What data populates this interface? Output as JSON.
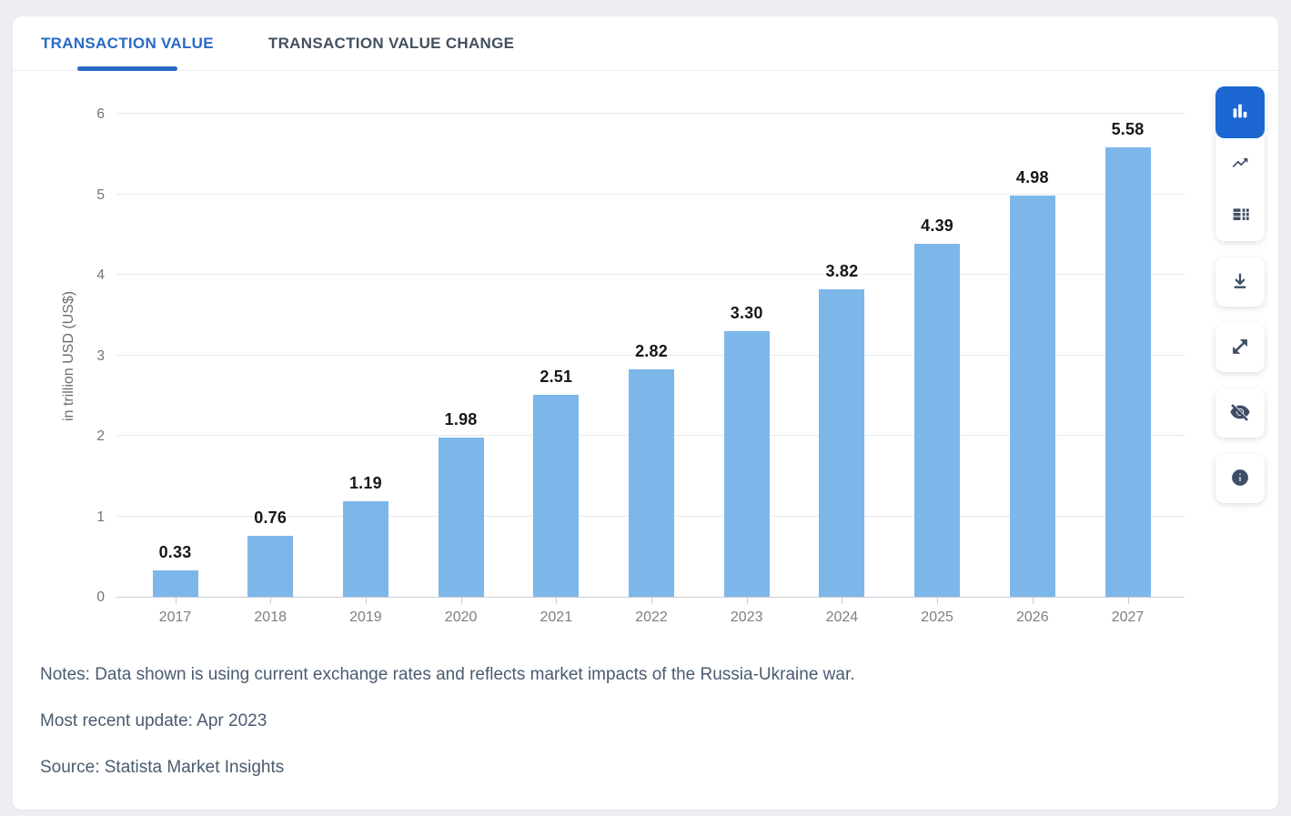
{
  "theme": {
    "accent_blue": "#2a6ac6",
    "active_button_blue": "#1d67d2",
    "icon_slate": "#3e4e66",
    "page_background": "#edeff4"
  },
  "tabs": [
    {
      "label": "TRANSACTION VALUE",
      "active": true
    },
    {
      "label": "TRANSACTION VALUE CHANGE",
      "active": false
    }
  ],
  "chart_data": {
    "type": "bar",
    "categories": [
      "2017",
      "2018",
      "2019",
      "2020",
      "2021",
      "2022",
      "2023",
      "2024",
      "2025",
      "2026",
      "2027"
    ],
    "values": [
      0.33,
      0.76,
      1.19,
      1.98,
      2.51,
      2.82,
      3.3,
      3.82,
      4.39,
      4.98,
      5.58
    ],
    "value_labels": [
      "0.33",
      "0.76",
      "1.19",
      "1.98",
      "2.51",
      "2.82",
      "3.30",
      "3.82",
      "4.39",
      "4.98",
      "5.58"
    ],
    "ylabel": "in trillion USD (US$)",
    "ylim": [
      0,
      6
    ],
    "yticks": [
      0,
      1,
      2,
      3,
      4,
      5,
      6
    ],
    "bar_color": "#7db7ea",
    "grid": true,
    "legend": "none",
    "data_labels": true
  },
  "toolbar": {
    "chart_type_buttons": [
      {
        "name": "column-chart",
        "icon": "column-chart-icon",
        "active": true
      },
      {
        "name": "line-chart",
        "icon": "line-chart-icon",
        "active": false
      },
      {
        "name": "table-view",
        "icon": "table-icon",
        "active": false
      }
    ],
    "action_buttons": [
      {
        "name": "download",
        "icon": "download-icon"
      },
      {
        "name": "fullscreen",
        "icon": "expand-icon"
      },
      {
        "name": "hide-labels",
        "icon": "eye-off-icon"
      },
      {
        "name": "info",
        "icon": "info-icon"
      }
    ]
  },
  "notes": {
    "note": "Notes: Data shown is using current exchange rates and reflects market impacts of the Russia-Ukraine war.",
    "update": "Most recent update: Apr 2023",
    "source": "Source: Statista Market Insights"
  }
}
